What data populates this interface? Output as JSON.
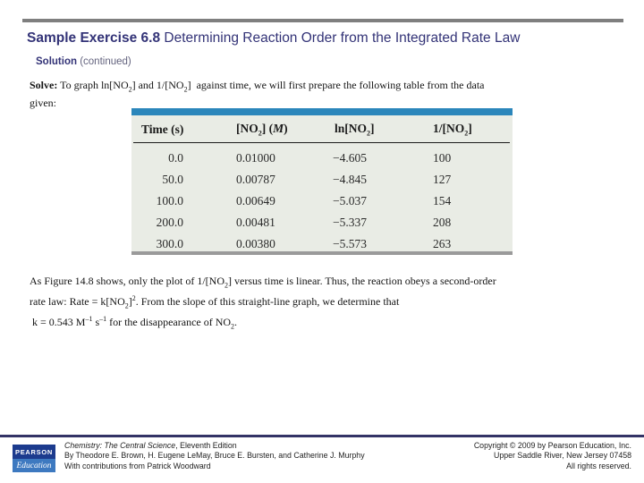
{
  "slide": {
    "title_bold": "Sample Exercise 6.8",
    "title_rest": " Determining Reaction Order from the Integrated Rate Law",
    "solution_bold": "Solution",
    "solution_rest": " (continued)"
  },
  "body": {
    "solve_label": "Solve:",
    "solve_html": " To graph ln[NO<sub>2</sub>] and 1/[NO<sub>2</sub>]&nbsp; against time, we will first prepare the following table from the data<br>given:",
    "conclusion_html": "As Figure 14.8 shows, only the plot of 1/[NO<sub>2</sub>] versus time is linear. Thus, the reaction obeys a second-order<br>rate law: Rate = k[NO<sub>2</sub>]<sup>2</sup>. From the slope of this straight-line graph, we determine that<br>&nbsp;k = 0.543 M<sup>–1</sup> s<sup>–1</sup> for the disappearance of NO<sub>2</sub>."
  },
  "table": {
    "headers_html": [
      "Time (s)",
      "[NO<sub>2</sub>] (<i>M</i>)",
      "ln[NO<sub>2</sub>]",
      "1/[NO<sub>2</sub>]"
    ],
    "rows": [
      [
        "0.0",
        "0.01000",
        "−4.605",
        "100"
      ],
      [
        "50.0",
        "0.00787",
        "−4.845",
        "127"
      ],
      [
        "100.0",
        "0.00649",
        "−5.037",
        "154"
      ],
      [
        "200.0",
        "0.00481",
        "−5.337",
        "208"
      ],
      [
        "300.0",
        "0.00380",
        "−5.573",
        "263"
      ]
    ]
  },
  "footer": {
    "logo_top": "PEARSON",
    "logo_bottom": "Education",
    "book_title_italic": "Chemistry: The Central Science",
    "book_title_rest": ", Eleventh Edition",
    "authors": "By Theodore E. Brown, H. Eugene LeMay, Bruce E. Bursten, and Catherine J. Murphy",
    "contrib": "With contributions from Patrick Woodward",
    "copyright_line1": "Copyright © 2009 by Pearson Education, Inc.",
    "copyright_line2": "Upper Saddle River, New Jersey 07458",
    "copyright_line3": "All rights reserved."
  },
  "colors": {
    "title_navy": "#333377",
    "top_rule_gray": "#7f7f7f",
    "table_bar_blue": "#2b86bb",
    "table_bg": "#e9ece5",
    "table_bottom_gray": "#9a9a9a",
    "footer_rule_navy": "#333366",
    "logo_navy": "#1c3b8e",
    "logo_blue": "#3d79c0"
  }
}
